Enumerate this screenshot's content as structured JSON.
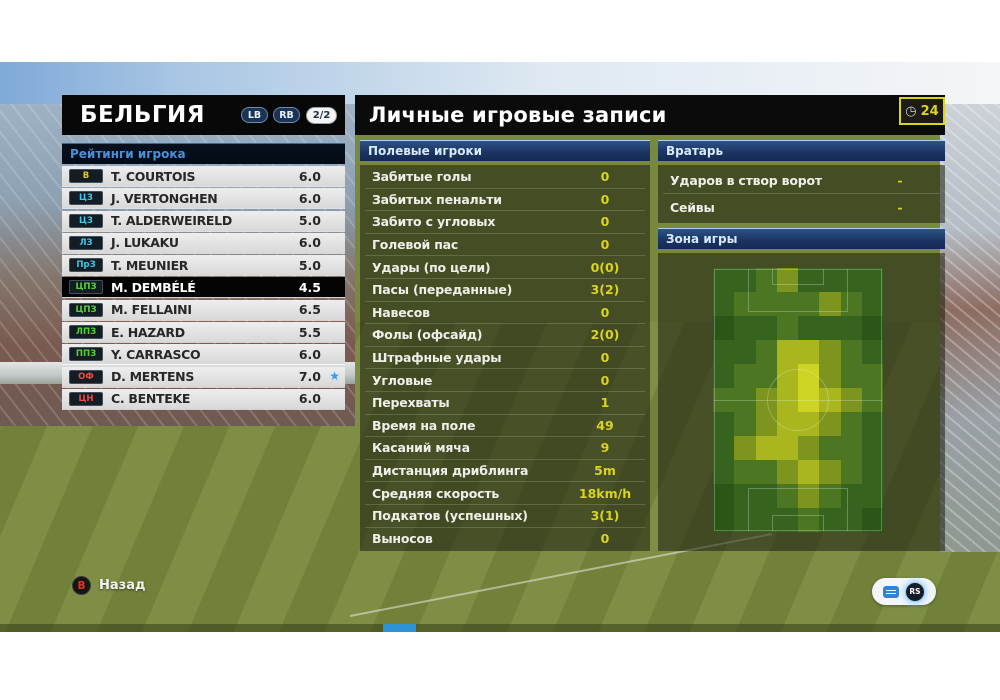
{
  "team_panel": {
    "title": "БЕЛЬГИЯ",
    "prev_button": "LB",
    "next_button": "RB",
    "page_indicator": "2/2",
    "section_header": "Рейтинги игрока",
    "players": [
      {
        "pos": "В",
        "pos_color": "#e8c51e",
        "name": "T. COURTOIS",
        "rating": "6.0",
        "selected": false,
        "starred": false
      },
      {
        "pos": "ЦЗ",
        "pos_color": "#3fc8ea",
        "name": "J. VERTONGHEN",
        "rating": "6.0",
        "selected": false,
        "starred": false
      },
      {
        "pos": "ЦЗ",
        "pos_color": "#3fc8ea",
        "name": "T. ALDERWEIRELD",
        "rating": "5.0",
        "selected": false,
        "starred": false
      },
      {
        "pos": "ЛЗ",
        "pos_color": "#3fc8ea",
        "name": "J. LUKAKU",
        "rating": "6.0",
        "selected": false,
        "starred": false
      },
      {
        "pos": "ПрЗ",
        "pos_color": "#3fc8ea",
        "name": "T. MEUNIER",
        "rating": "5.0",
        "selected": false,
        "starred": false
      },
      {
        "pos": "ЦПЗ",
        "pos_color": "#55d437",
        "name": "M. DEMBÉLÉ",
        "rating": "4.5",
        "selected": true,
        "starred": false
      },
      {
        "pos": "ЦПЗ",
        "pos_color": "#55d437",
        "name": "M. FELLAINI",
        "rating": "6.5",
        "selected": false,
        "starred": false
      },
      {
        "pos": "ЛПЗ",
        "pos_color": "#55d437",
        "name": "E. HAZARD",
        "rating": "5.5",
        "selected": false,
        "starred": false
      },
      {
        "pos": "ППЗ",
        "pos_color": "#55d437",
        "name": "Y. CARRASCO",
        "rating": "6.0",
        "selected": false,
        "starred": false
      },
      {
        "pos": "ОФ",
        "pos_color": "#ef4b43",
        "name": "D. MERTENS",
        "rating": "7.0",
        "selected": false,
        "starred": true
      },
      {
        "pos": "ЦН",
        "pos_color": "#ef4b43",
        "name": "C. BENTEKE",
        "rating": "6.0",
        "selected": false,
        "starred": false
      }
    ]
  },
  "main_panel": {
    "title": "Личные игровые записи",
    "clock_value": "24",
    "field_players": {
      "header": "Полевые игроки",
      "stats": [
        {
          "label": "Забитые голы",
          "value": "0"
        },
        {
          "label": "Забитых пенальти",
          "value": "0"
        },
        {
          "label": "Забито с угловых",
          "value": "0"
        },
        {
          "label": "Голевой пас",
          "value": "0"
        },
        {
          "label": "Удары (по цели)",
          "value": "0(0)"
        },
        {
          "label": "Пасы (переданные)",
          "value": "3(2)"
        },
        {
          "label": "Навесов",
          "value": "0"
        },
        {
          "label": "Фолы (офсайд)",
          "value": "2(0)"
        },
        {
          "label": "Штрафные удары",
          "value": "0"
        },
        {
          "label": "Угловые",
          "value": "0"
        },
        {
          "label": "Перехваты",
          "value": "1"
        },
        {
          "label": "Время на поле",
          "value": "49"
        },
        {
          "label": "Касаний мяча",
          "value": "9"
        },
        {
          "label": "Дистанция дриблинга",
          "value": "5m"
        },
        {
          "label": "Средняя скорость",
          "value": "18km/h"
        },
        {
          "label": "Подкатов (успешных)",
          "value": "3(1)"
        },
        {
          "label": "Выносов",
          "value": "0"
        }
      ]
    },
    "goalkeeper": {
      "header": "Вратарь",
      "stats": [
        {
          "label": "Ударов в створ ворот",
          "value": "-"
        },
        {
          "label": "Сейвы",
          "value": "-"
        }
      ]
    },
    "zone": {
      "header": "Зона игры",
      "heatmap": {
        "cols": 8,
        "rows": 11,
        "palette": [
          "#2a5618",
          "#36641f",
          "#4d7622",
          "#7d941f",
          "#aab61e",
          "#ced424"
        ],
        "grid": [
          [
            1,
            1,
            2,
            3,
            1,
            1,
            1,
            1
          ],
          [
            1,
            2,
            2,
            2,
            2,
            3,
            2,
            1
          ],
          [
            0,
            1,
            1,
            2,
            1,
            1,
            1,
            0
          ],
          [
            1,
            1,
            2,
            4,
            4,
            3,
            2,
            1
          ],
          [
            1,
            2,
            2,
            4,
            5,
            3,
            2,
            2
          ],
          [
            2,
            2,
            3,
            4,
            5,
            4,
            3,
            2
          ],
          [
            1,
            2,
            3,
            4,
            4,
            3,
            2,
            1
          ],
          [
            1,
            3,
            4,
            4,
            3,
            2,
            2,
            1
          ],
          [
            1,
            2,
            2,
            3,
            4,
            3,
            2,
            1
          ],
          [
            0,
            1,
            1,
            2,
            3,
            2,
            1,
            1
          ],
          [
            0,
            1,
            1,
            1,
            2,
            1,
            1,
            0
          ]
        ]
      }
    }
  },
  "footer": {
    "back_button": "B",
    "back_label": "Назад",
    "stick_button": "RS"
  },
  "icons": {
    "star_glyph": "★",
    "clock_glyph": "◷"
  },
  "colors": {
    "value_yellow": "#d9d41e",
    "header_blue": "#1b3563",
    "selected_row": "#040404"
  }
}
